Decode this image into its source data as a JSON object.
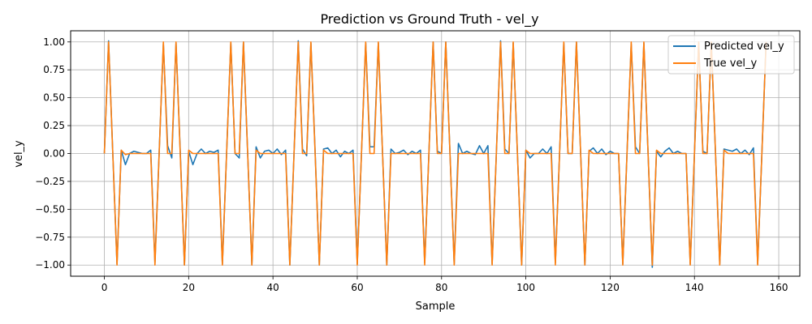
{
  "chart_data": {
    "type": "line",
    "title": "Prediction vs Ground Truth - vel_y",
    "xlabel": "Sample",
    "ylabel": "vel_y",
    "xlim": [
      -8,
      165
    ],
    "ylim": [
      -1.1,
      1.1
    ],
    "xticks": [
      0,
      20,
      40,
      60,
      80,
      100,
      120,
      140,
      160
    ],
    "yticks": [
      -1.0,
      -0.75,
      -0.5,
      -0.25,
      0.0,
      0.25,
      0.5,
      0.75,
      1.0
    ],
    "ytick_labels": [
      "−1.00",
      "−0.75",
      "−0.50",
      "−0.25",
      "0.00",
      "0.25",
      "0.50",
      "0.75",
      "1.00"
    ],
    "grid": true,
    "legend_position": "top-right",
    "series": [
      {
        "name": "Predicted vel_y",
        "color": "#1f77b4",
        "values": [
          0.0,
          1.01,
          0.0,
          -0.99,
          0.03,
          -0.1,
          0.0,
          0.02,
          0.01,
          0.0,
          0.0,
          0.03,
          -0.98,
          0.01,
          0.98,
          0.07,
          -0.04,
          0.99,
          0.02,
          -1.0,
          0.02,
          -0.1,
          0.0,
          0.04,
          0.0,
          0.02,
          0.01,
          0.03,
          -0.99,
          0.0,
          0.99,
          0.0,
          -0.04,
          1.0,
          0.0,
          -1.0,
          0.06,
          -0.04,
          0.02,
          0.03,
          0.0,
          0.04,
          -0.01,
          0.03,
          -1.0,
          0.0,
          1.01,
          0.04,
          -0.02,
          0.99,
          0.02,
          -1.0,
          0.04,
          0.05,
          0.0,
          0.03,
          -0.03,
          0.02,
          0.0,
          0.03,
          -0.99,
          0.0,
          0.99,
          0.06,
          0.06,
          0.99,
          0.0,
          -1.0,
          0.04,
          0.0,
          0.01,
          0.03,
          -0.01,
          0.02,
          0.0,
          0.03,
          -0.98,
          0.0,
          1.0,
          0.02,
          0.0,
          1.0,
          0.0,
          -0.99,
          0.09,
          0.0,
          0.02,
          0.0,
          -0.01,
          0.07,
          0.0,
          0.07,
          -0.99,
          0.0,
          1.01,
          0.04,
          0.0,
          0.99,
          0.0,
          -1.0,
          0.03,
          -0.04,
          0.0,
          0.0,
          0.04,
          0.0,
          0.06,
          -0.98,
          0.0,
          0.99,
          0.0,
          0.0,
          1.0,
          0.0,
          -1.0,
          0.02,
          0.05,
          0.0,
          0.04,
          -0.01,
          0.02,
          0.0,
          0.0,
          -0.99,
          0.0,
          0.98,
          0.06,
          0.0,
          0.99,
          0.0,
          -1.02,
          0.02,
          -0.03,
          0.02,
          0.05,
          0.0,
          0.02,
          0.0,
          0.0,
          -0.99,
          0.0,
          0.99,
          0.02,
          0.0,
          0.99,
          0.0,
          -0.99,
          0.04,
          0.03,
          0.02,
          0.04,
          0.0,
          0.03,
          -0.01,
          0.05,
          -0.99,
          0.0,
          1.0
        ]
      },
      {
        "name": "True vel_y",
        "color": "#ff7f0e",
        "values": [
          0.0,
          1.0,
          0.0,
          -1.0,
          0.03,
          -0.01,
          0.0,
          0.0,
          0.0,
          0.0,
          0.0,
          0.0,
          -1.0,
          0.0,
          1.0,
          0.0,
          0.0,
          1.0,
          0.0,
          -1.0,
          0.03,
          0.0,
          0.0,
          0.0,
          0.0,
          0.0,
          0.0,
          0.0,
          -1.0,
          0.0,
          1.0,
          0.0,
          0.0,
          1.0,
          0.0,
          -1.0,
          0.03,
          0.0,
          0.0,
          0.0,
          0.0,
          0.0,
          0.0,
          0.0,
          -1.0,
          0.0,
          1.0,
          0.0,
          0.0,
          1.0,
          0.0,
          -1.0,
          0.03,
          0.0,
          0.0,
          0.0,
          0.0,
          0.0,
          0.0,
          0.0,
          -1.0,
          0.0,
          1.0,
          0.0,
          0.0,
          1.0,
          0.0,
          -1.0,
          0.0,
          0.0,
          0.0,
          0.0,
          0.0,
          0.0,
          0.0,
          0.0,
          -1.0,
          0.0,
          1.0,
          0.0,
          0.0,
          1.0,
          0.0,
          -1.0,
          0.0,
          0.0,
          0.0,
          0.0,
          0.0,
          0.0,
          0.0,
          0.0,
          -1.0,
          0.0,
          1.0,
          0.0,
          0.0,
          1.0,
          0.0,
          -1.0,
          0.03,
          0.0,
          0.0,
          0.0,
          0.0,
          0.0,
          0.0,
          -1.0,
          0.0,
          1.0,
          0.0,
          0.0,
          1.0,
          0.0,
          -1.0,
          0.03,
          0.0,
          0.0,
          0.0,
          0.0,
          0.0,
          0.0,
          0.0,
          -1.0,
          0.0,
          1.0,
          0.0,
          0.0,
          1.0,
          0.0,
          -1.0,
          0.03,
          0.0,
          0.0,
          0.0,
          0.0,
          0.0,
          0.0,
          0.0,
          -1.0,
          0.0,
          1.0,
          0.0,
          0.0,
          1.0,
          0.0,
          -1.0,
          0.03,
          0.0,
          0.0,
          0.0,
          0.0,
          0.0,
          0.0,
          0.0,
          -1.0,
          0.0,
          1.0
        ]
      }
    ]
  }
}
